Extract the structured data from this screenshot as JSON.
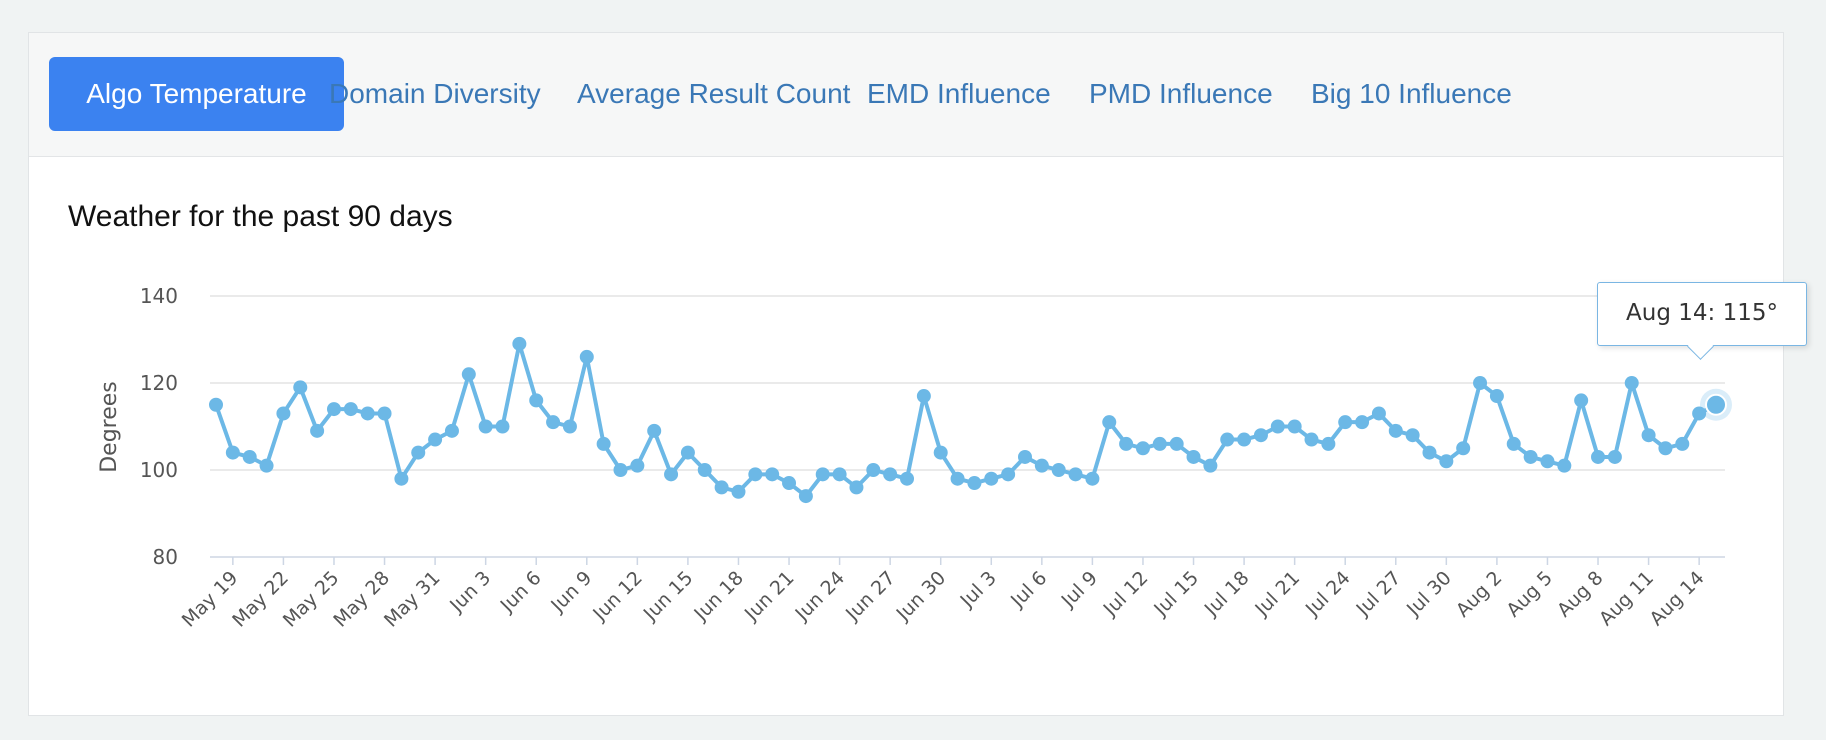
{
  "tabs": [
    {
      "label": "Algo Temperature",
      "active": true
    },
    {
      "label": "Domain Diversity",
      "active": false
    },
    {
      "label": "Average Result Count",
      "active": false
    },
    {
      "label": "EMD Influence",
      "active": false
    },
    {
      "label": "PMD Influence",
      "active": false
    },
    {
      "label": "Big 10 Influence",
      "active": false
    }
  ],
  "colors": {
    "accent": "#3b82f0",
    "line": "#6cb8e6",
    "tab_text": "#3a78b6"
  },
  "tooltip": {
    "text": "Aug 14: 115°"
  },
  "chart_data": {
    "type": "line",
    "title": "Weather for the past 90 days",
    "xlabel": "",
    "ylabel": "Degrees",
    "ylim": [
      80,
      140
    ],
    "yticks": [
      80,
      100,
      120,
      140
    ],
    "grid": true,
    "x_start": "May 18",
    "x_end": "Aug 14",
    "xtick_labels": [
      "May 19",
      "May 22",
      "May 25",
      "May 28",
      "May 31",
      "Jun 3",
      "Jun 6",
      "Jun 9",
      "Jun 12",
      "Jun 15",
      "Jun 18",
      "Jun 21",
      "Jun 24",
      "Jun 27",
      "Jun 30",
      "Jul 3",
      "Jul 6",
      "Jul 9",
      "Jul 12",
      "Jul 15",
      "Jul 18",
      "Jul 21",
      "Jul 24",
      "Jul 27",
      "Jul 30",
      "Aug 2",
      "Aug 5",
      "Aug 8",
      "Aug 11",
      "Aug 14"
    ],
    "series": [
      {
        "name": "Temperature",
        "values": [
          115,
          104,
          103,
          101,
          113,
          119,
          109,
          114,
          114,
          113,
          113,
          98,
          104,
          107,
          109,
          122,
          110,
          110,
          129,
          116,
          111,
          110,
          126,
          106,
          100,
          101,
          109,
          99,
          104,
          100,
          96,
          95,
          99,
          99,
          97,
          94,
          99,
          99,
          96,
          100,
          99,
          98,
          117,
          104,
          98,
          97,
          98,
          99,
          103,
          101,
          100,
          99,
          98,
          111,
          106,
          105,
          106,
          106,
          103,
          101,
          107,
          107,
          108,
          110,
          110,
          107,
          106,
          111,
          111,
          113,
          109,
          108,
          104,
          102,
          105,
          120,
          117,
          106,
          103,
          102,
          101,
          116,
          103,
          103,
          120,
          108,
          105,
          106,
          113,
          115
        ]
      }
    ]
  }
}
